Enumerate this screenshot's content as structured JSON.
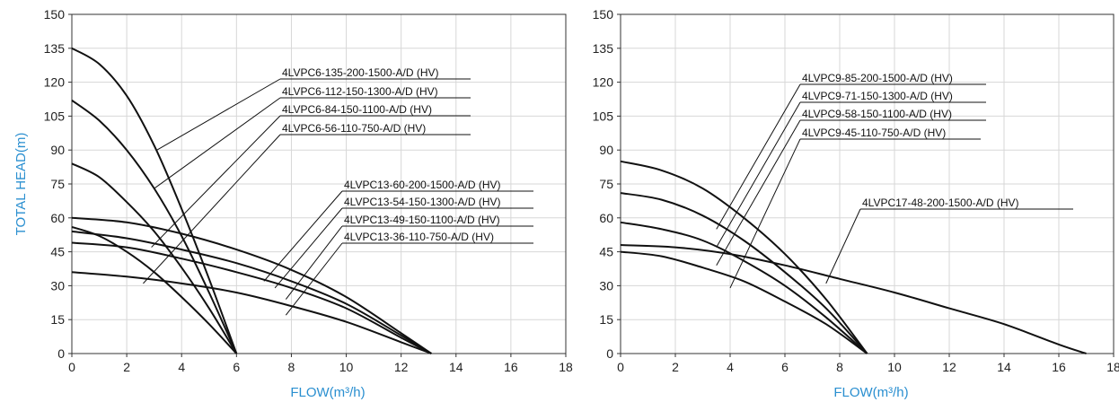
{
  "chart_data": [
    {
      "type": "line",
      "xlabel": "FLOW(m³/h)",
      "ylabel": "TOTAL HEAD(m)",
      "xlim": [
        0,
        18
      ],
      "ylim": [
        0,
        150
      ],
      "x_ticks": [
        "0",
        "2",
        "4",
        "6",
        "8",
        "10",
        "12",
        "14",
        "16",
        "18"
      ],
      "y_ticks": [
        "0",
        "15",
        "30",
        "45",
        "60",
        "75",
        "90",
        "105",
        "120",
        "135",
        "150"
      ],
      "grid": true,
      "series": [
        {
          "name": "4LVPC6-135-200-1500-A/D (HV)",
          "x": [
            0,
            1,
            2,
            3,
            4,
            5,
            6
          ],
          "y": [
            135,
            128,
            114,
            92,
            64,
            33,
            0
          ]
        },
        {
          "name": "4LVPC6-112-150-1300-A/D (HV)",
          "x": [
            0,
            1,
            2,
            3,
            4,
            5,
            6
          ],
          "y": [
            112,
            103,
            90,
            73,
            52,
            27,
            0
          ]
        },
        {
          "name": "4LVPC6-84-150-1100-A/D (HV)",
          "x": [
            0,
            1,
            2,
            3,
            4,
            5,
            6
          ],
          "y": [
            84,
            78,
            67,
            54,
            38,
            20,
            0
          ]
        },
        {
          "name": "4LVPC6-56-110-750-A/D (HV)",
          "x": [
            0,
            1,
            2,
            3,
            4,
            5,
            6
          ],
          "y": [
            56,
            52,
            45,
            36,
            25,
            13,
            0
          ]
        },
        {
          "name": "4LVPC13-60-200-1500-A/D (HV)",
          "x": [
            0,
            2,
            4,
            6,
            8,
            10,
            12,
            13.1
          ],
          "y": [
            60,
            58,
            53,
            46,
            37,
            25,
            9,
            0
          ]
        },
        {
          "name": "4LVPC13-54-150-1300-A/D (HV)",
          "x": [
            0,
            2,
            4,
            6,
            8,
            10,
            12,
            13.1
          ],
          "y": [
            54,
            51,
            46,
            40,
            32,
            22,
            8,
            0
          ]
        },
        {
          "name": "4LVPC13-49-150-1100-A/D (HV)",
          "x": [
            0,
            2,
            4,
            6,
            8,
            10,
            12,
            13.1
          ],
          "y": [
            49,
            47,
            42,
            36,
            29,
            20,
            7,
            0
          ]
        },
        {
          "name": "4LVPC13-36-110-750-A/D (HV)",
          "x": [
            0,
            2,
            4,
            6,
            8,
            10,
            12,
            13.1
          ],
          "y": [
            36,
            34,
            31,
            27,
            21,
            14,
            5,
            0
          ]
        }
      ]
    },
    {
      "type": "line",
      "xlabel": "FLOW(m³/h)",
      "ylabel": "",
      "xlim": [
        0,
        18
      ],
      "ylim": [
        0,
        150
      ],
      "x_ticks": [
        "0",
        "2",
        "4",
        "6",
        "8",
        "10",
        "12",
        "14",
        "16",
        "18"
      ],
      "y_ticks": [
        "0",
        "15",
        "30",
        "45",
        "60",
        "75",
        "90",
        "105",
        "120",
        "135",
        "150"
      ],
      "grid": true,
      "series": [
        {
          "name": "4LVPC9-85-200-1500-A/D (HV)",
          "x": [
            0,
            1.5,
            3,
            4.5,
            6,
            7.5,
            9
          ],
          "y": [
            85,
            81,
            73,
            60,
            44,
            24,
            0
          ]
        },
        {
          "name": "4LVPC9-71-150-1300-A/D (HV)",
          "x": [
            0,
            1.5,
            3,
            4.5,
            6,
            7.5,
            9
          ],
          "y": [
            71,
            68,
            61,
            50,
            36,
            20,
            0
          ]
        },
        {
          "name": "4LVPC9-58-150-1100-A/D (HV)",
          "x": [
            0,
            1.5,
            3,
            4.5,
            6,
            7.5,
            9
          ],
          "y": [
            58,
            55,
            50,
            41,
            30,
            16,
            0
          ]
        },
        {
          "name": "4LVPC9-45-110-750-A/D (HV)",
          "x": [
            0,
            1.5,
            3,
            4.5,
            6,
            7.5,
            9
          ],
          "y": [
            45,
            43,
            38,
            32,
            23,
            13,
            0
          ]
        },
        {
          "name": "4LVPC17-48-200-1500-A/D (HV)",
          "x": [
            0,
            2,
            4,
            6,
            8,
            10,
            12,
            14,
            16,
            17
          ],
          "y": [
            48,
            47,
            44,
            39,
            33,
            27,
            20,
            13,
            4,
            0
          ]
        }
      ]
    }
  ]
}
